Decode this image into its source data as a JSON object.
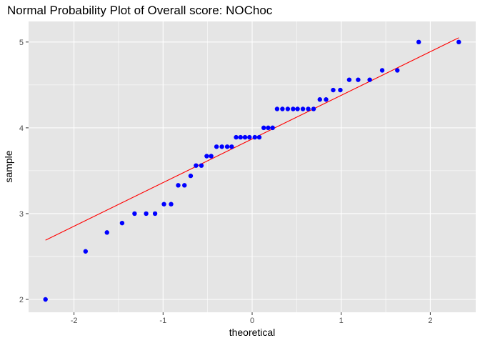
{
  "chart_data": {
    "type": "scatter",
    "title": "Normal Probability Plot of Overall score: NOChoc",
    "xlabel": "theoretical",
    "ylabel": "sample",
    "xlim": [
      -2.51,
      2.51
    ],
    "ylim": [
      1.85,
      5.24
    ],
    "x_ticks": [
      -2,
      -1,
      0,
      1,
      2
    ],
    "x_tick_labels": [
      "-2",
      "-1",
      "0",
      "1",
      "2"
    ],
    "y_ticks": [
      2,
      3,
      4,
      5
    ],
    "y_tick_labels": [
      "2",
      "3",
      "4",
      "5"
    ],
    "grid": true,
    "colors": {
      "panel": "#e5e5e5",
      "grid": "#ffffff",
      "points": "#0000ff",
      "line": "#ff0000"
    },
    "points": [
      {
        "x": -2.32,
        "y": 2.0
      },
      {
        "x": -1.87,
        "y": 2.56
      },
      {
        "x": -1.63,
        "y": 2.78
      },
      {
        "x": -1.46,
        "y": 2.89
      },
      {
        "x": -1.32,
        "y": 3.0
      },
      {
        "x": -1.19,
        "y": 3.0
      },
      {
        "x": -1.09,
        "y": 3.0
      },
      {
        "x": -0.99,
        "y": 3.11
      },
      {
        "x": -0.91,
        "y": 3.11
      },
      {
        "x": -0.83,
        "y": 3.33
      },
      {
        "x": -0.76,
        "y": 3.33
      },
      {
        "x": -0.69,
        "y": 3.44
      },
      {
        "x": -0.63,
        "y": 3.56
      },
      {
        "x": -0.57,
        "y": 3.56
      },
      {
        "x": -0.51,
        "y": 3.67
      },
      {
        "x": -0.46,
        "y": 3.67
      },
      {
        "x": -0.4,
        "y": 3.78
      },
      {
        "x": -0.34,
        "y": 3.78
      },
      {
        "x": -0.28,
        "y": 3.78
      },
      {
        "x": -0.23,
        "y": 3.78
      },
      {
        "x": -0.18,
        "y": 3.89
      },
      {
        "x": -0.13,
        "y": 3.89
      },
      {
        "x": -0.08,
        "y": 3.89
      },
      {
        "x": -0.03,
        "y": 3.89
      },
      {
        "x": 0.03,
        "y": 3.89
      },
      {
        "x": 0.08,
        "y": 3.89
      },
      {
        "x": 0.13,
        "y": 4.0
      },
      {
        "x": 0.18,
        "y": 4.0
      },
      {
        "x": 0.23,
        "y": 4.0
      },
      {
        "x": 0.28,
        "y": 4.22
      },
      {
        "x": 0.34,
        "y": 4.22
      },
      {
        "x": 0.4,
        "y": 4.22
      },
      {
        "x": 0.46,
        "y": 4.22
      },
      {
        "x": 0.51,
        "y": 4.22
      },
      {
        "x": 0.57,
        "y": 4.22
      },
      {
        "x": 0.63,
        "y": 4.22
      },
      {
        "x": 0.69,
        "y": 4.22
      },
      {
        "x": 0.76,
        "y": 4.33
      },
      {
        "x": 0.83,
        "y": 4.33
      },
      {
        "x": 0.91,
        "y": 4.44
      },
      {
        "x": 0.99,
        "y": 4.44
      },
      {
        "x": 1.09,
        "y": 4.56
      },
      {
        "x": 1.19,
        "y": 4.56
      },
      {
        "x": 1.32,
        "y": 4.56
      },
      {
        "x": 1.46,
        "y": 4.67
      },
      {
        "x": 1.63,
        "y": 4.67
      },
      {
        "x": 1.87,
        "y": 5.0
      },
      {
        "x": 2.32,
        "y": 5.0
      }
    ],
    "reference_line": {
      "x": [
        -2.32,
        2.32
      ],
      "y": [
        2.69,
        5.05
      ]
    }
  }
}
